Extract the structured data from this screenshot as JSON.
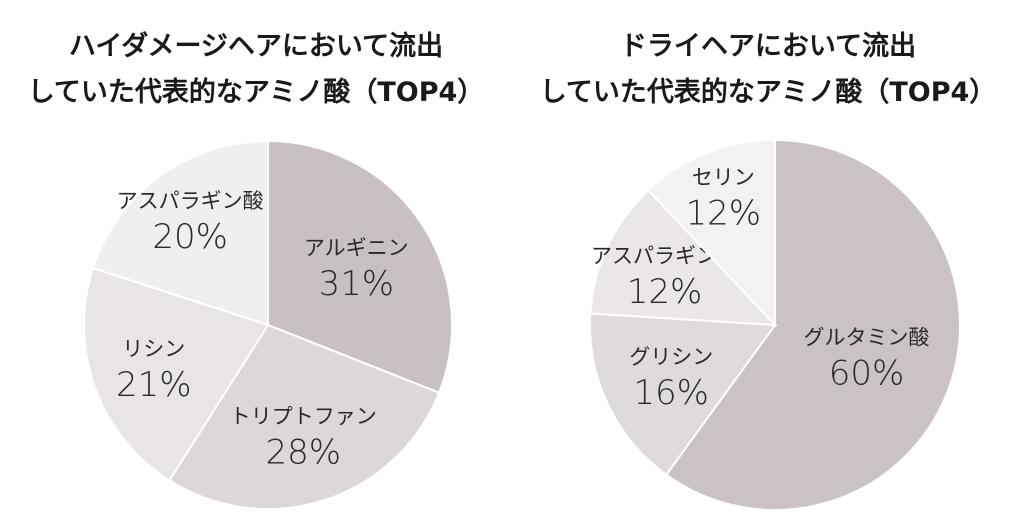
{
  "chart_data": [
    {
      "type": "pie",
      "title_line1": "ハイダメージヘアにおいて流出",
      "title_line2": "していた代表的なアミノ酸（TOP4）",
      "slices": [
        {
          "label": "アルギニン",
          "value": 31,
          "value_text": "31%",
          "color": "#c9c1c1"
        },
        {
          "label": "トリプトファン",
          "value": 28,
          "value_text": "28%",
          "color": "#ddd7d7"
        },
        {
          "label": "リシン",
          "value": 21,
          "value_text": "21%",
          "color": "#e9e5e5"
        },
        {
          "label": "アスパラギン酸",
          "value": 20,
          "value_text": "20%",
          "color": "#f1eeee"
        }
      ]
    },
    {
      "type": "pie",
      "title_line1": "ドライヘアにおいて流出",
      "title_line2": "していた代表的なアミノ酸（TOP4）",
      "slices": [
        {
          "label": "グルタミン酸",
          "value": 60,
          "value_text": "60%",
          "color": "#cbc3c3"
        },
        {
          "label": "グリシン",
          "value": 16,
          "value_text": "16%",
          "color": "#e0dbdb"
        },
        {
          "label": "アスパラギン酸",
          "value": 12,
          "value_text": "12%",
          "color": "#ebe7e7"
        },
        {
          "label": "セリン",
          "value": 12,
          "value_text": "12%",
          "color": "#f3f1f1"
        }
      ]
    }
  ]
}
